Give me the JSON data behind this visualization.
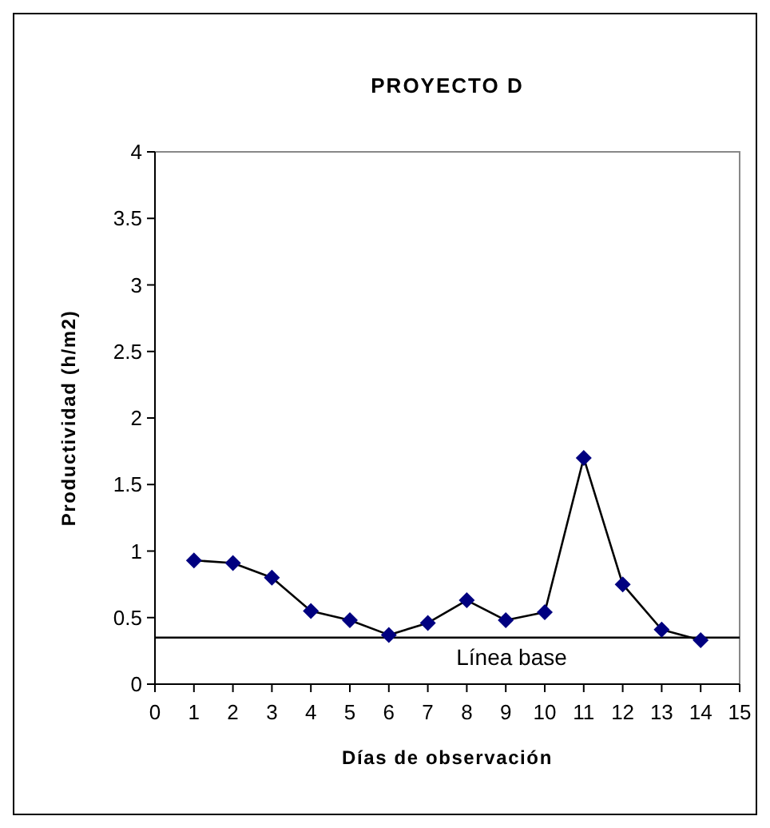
{
  "chart_data": {
    "type": "line",
    "title": "PROYECTO D",
    "xlabel": "Días de observación",
    "ylabel": "Productividad (h/m2)",
    "x": [
      1,
      2,
      3,
      4,
      5,
      6,
      7,
      8,
      9,
      10,
      11,
      12,
      13,
      14
    ],
    "series": [
      {
        "color": "#000080",
        "values": [
          0.93,
          0.91,
          0.8,
          0.55,
          0.48,
          0.37,
          0.46,
          0.63,
          0.48,
          0.54,
          1.7,
          0.75,
          0.41,
          0.33
        ]
      }
    ],
    "xlim": [
      0,
      15
    ],
    "xticks": [
      0,
      1,
      2,
      3,
      4,
      5,
      6,
      7,
      8,
      9,
      10,
      11,
      12,
      13,
      14,
      15
    ],
    "ylim": [
      0,
      4
    ],
    "yticks": [
      0,
      0.5,
      1,
      1.5,
      2,
      2.5,
      3,
      3.5,
      4
    ],
    "ref_lines": [
      {
        "axis": "y",
        "value": 0.35,
        "label": "Línea base",
        "color": "#000000"
      }
    ],
    "marker": "diamond"
  }
}
